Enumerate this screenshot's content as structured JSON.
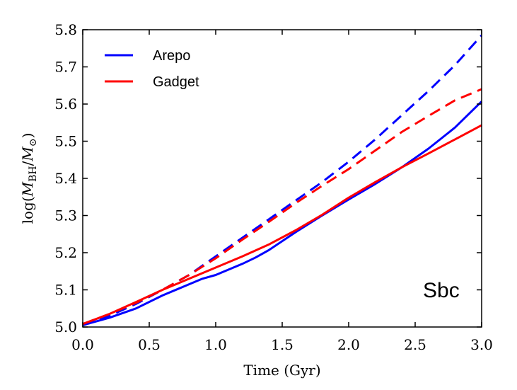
{
  "chart_data": {
    "type": "line",
    "title": "",
    "xlabel": "Time (Gyr)",
    "ylabel_prefix": "log(",
    "ylabel_m": "M",
    "ylabel_sub1": "BH",
    "ylabel_slash": "/",
    "ylabel_sub2": "⊙",
    "ylabel_suffix": ")",
    "xlim": [
      0.0,
      3.0
    ],
    "ylim": [
      5.0,
      5.8
    ],
    "xticks": [
      "0.0",
      "0.5",
      "1.0",
      "1.5",
      "2.0",
      "2.5",
      "3.0"
    ],
    "yticks": [
      "5.0",
      "5.1",
      "5.2",
      "5.3",
      "5.4",
      "5.5",
      "5.6",
      "5.7",
      "5.8"
    ],
    "legend_position": "top-left",
    "annotation": "Sbc",
    "colors": {
      "arepo": "#0000ff",
      "gadget": "#ff0000"
    },
    "series": [
      {
        "name": "Arepo",
        "color": "#0000ff",
        "style": "solid",
        "in_legend": true,
        "x": [
          0.0,
          0.2,
          0.4,
          0.6,
          0.8,
          0.9,
          1.0,
          1.1,
          1.2,
          1.3,
          1.4,
          1.6,
          1.8,
          2.0,
          2.2,
          2.4,
          2.6,
          2.8,
          3.0
        ],
        "y": [
          5.005,
          5.025,
          5.05,
          5.085,
          5.115,
          5.13,
          5.14,
          5.155,
          5.17,
          5.187,
          5.207,
          5.255,
          5.3,
          5.343,
          5.385,
          5.43,
          5.48,
          5.537,
          5.607
        ]
      },
      {
        "name": "Gadget",
        "color": "#ff0000",
        "style": "solid",
        "in_legend": true,
        "x": [
          0.0,
          0.2,
          0.4,
          0.6,
          0.8,
          1.0,
          1.2,
          1.4,
          1.6,
          1.8,
          2.0,
          2.2,
          2.4,
          2.6,
          2.8,
          3.0
        ],
        "y": [
          5.008,
          5.035,
          5.067,
          5.1,
          5.13,
          5.16,
          5.19,
          5.222,
          5.26,
          5.302,
          5.348,
          5.39,
          5.43,
          5.467,
          5.505,
          5.543
        ]
      },
      {
        "name": "Arepo (dashed)",
        "color": "#0000ff",
        "style": "dashed",
        "in_legend": false,
        "x": [
          0.0,
          0.2,
          0.4,
          0.6,
          0.8,
          1.0,
          1.2,
          1.4,
          1.6,
          1.8,
          2.0,
          2.2,
          2.4,
          2.6,
          2.8,
          3.0
        ],
        "y": [
          5.008,
          5.03,
          5.062,
          5.1,
          5.14,
          5.19,
          5.24,
          5.29,
          5.34,
          5.39,
          5.445,
          5.505,
          5.57,
          5.635,
          5.705,
          5.785
        ]
      },
      {
        "name": "Gadget (dashed)",
        "color": "#ff0000",
        "style": "dashed",
        "in_legend": false,
        "x": [
          0.0,
          0.2,
          0.4,
          0.6,
          0.8,
          1.0,
          1.2,
          1.4,
          1.6,
          1.8,
          2.0,
          2.2,
          2.4,
          2.6,
          2.8,
          3.0
        ],
        "y": [
          5.008,
          5.035,
          5.065,
          5.1,
          5.14,
          5.185,
          5.235,
          5.283,
          5.333,
          5.38,
          5.425,
          5.475,
          5.525,
          5.568,
          5.61,
          5.64
        ]
      }
    ]
  }
}
